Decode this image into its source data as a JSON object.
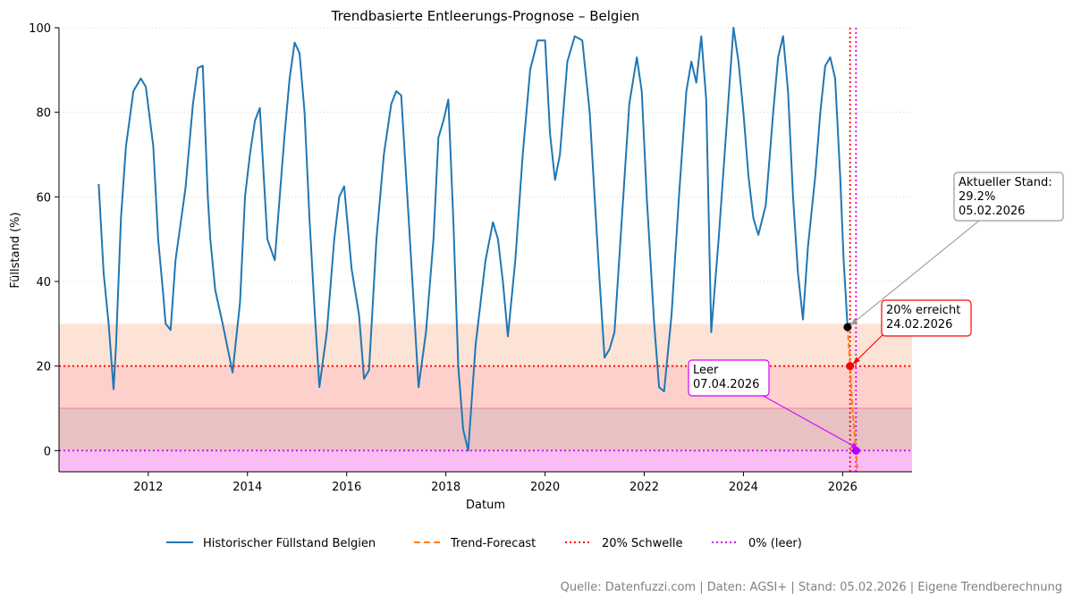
{
  "chart_data": {
    "type": "line",
    "title": "Trendbasierte Entleerungs-Prognose – Belgien",
    "xlabel": "Datum",
    "ylabel": "Füllstand (%)",
    "xlim": [
      2010.2,
      2027.4
    ],
    "ylim": [
      -5,
      100
    ],
    "x_ticks": [
      2012,
      2014,
      2016,
      2018,
      2020,
      2022,
      2024,
      2026
    ],
    "y_ticks": [
      0,
      20,
      40,
      60,
      80,
      100
    ],
    "grid": "horizontal dotted",
    "bands": [
      {
        "from": 20,
        "to": 30,
        "color": "#fde3d6"
      },
      {
        "from": 10,
        "to": 20,
        "color": "#fdd0cc"
      },
      {
        "from": 0,
        "to": 10,
        "color": "#e8c1c3"
      },
      {
        "from": -5,
        "to": 0,
        "color": "#fbbcf5"
      }
    ],
    "historical": {
      "name": "Historischer Füllstand Belgien",
      "color": "#1f77b4",
      "x": [
        2011.0,
        2011.1,
        2011.2,
        2011.3,
        2011.35,
        2011.45,
        2011.55,
        2011.7,
        2011.85,
        2011.95,
        2012.1,
        2012.2,
        2012.3,
        2012.35,
        2012.45,
        2012.55,
        2012.75,
        2012.9,
        2013.0,
        2013.1,
        2013.2,
        2013.25,
        2013.35,
        2013.5,
        2013.7,
        2013.85,
        2013.95,
        2014.05,
        2014.15,
        2014.25,
        2014.4,
        2014.55,
        2014.65,
        2014.75,
        2014.85,
        2014.95,
        2015.05,
        2015.15,
        2015.25,
        2015.35,
        2015.45,
        2015.6,
        2015.75,
        2015.85,
        2015.95,
        2016.1,
        2016.25,
        2016.35,
        2016.45,
        2016.6,
        2016.75,
        2016.9,
        2017.0,
        2017.1,
        2017.25,
        2017.35,
        2017.45,
        2017.6,
        2017.75,
        2017.85,
        2017.95,
        2018.05,
        2018.15,
        2018.25,
        2018.35,
        2018.45,
        2018.6,
        2018.8,
        2018.95,
        2019.05,
        2019.15,
        2019.25,
        2019.4,
        2019.55,
        2019.7,
        2019.85,
        2020.0,
        2020.1,
        2020.2,
        2020.3,
        2020.45,
        2020.6,
        2020.75,
        2020.9,
        2021.0,
        2021.1,
        2021.2,
        2021.3,
        2021.4,
        2021.55,
        2021.7,
        2021.85,
        2021.95,
        2022.05,
        2022.2,
        2022.3,
        2022.4,
        2022.55,
        2022.7,
        2022.85,
        2022.95,
        2023.05,
        2023.15,
        2023.25,
        2023.35,
        2023.5,
        2023.65,
        2023.8,
        2023.9,
        2024.0,
        2024.1,
        2024.2,
        2024.3,
        2024.45,
        2024.6,
        2024.7,
        2024.8,
        2024.9,
        2025.0,
        2025.1,
        2025.2,
        2025.3,
        2025.45,
        2025.55,
        2025.65,
        2025.75,
        2025.85,
        2025.95,
        2026.02,
        2026.1
      ],
      "y": [
        63,
        42,
        30,
        14.5,
        25,
        55,
        72,
        85,
        88,
        86,
        72,
        50,
        37,
        30,
        28.5,
        45,
        62,
        82,
        90.5,
        91,
        60,
        50,
        38,
        30,
        18.5,
        35,
        60,
        70,
        78,
        81,
        50,
        45,
        60,
        75,
        88,
        96.5,
        94,
        80,
        55,
        34,
        15,
        28,
        50,
        60,
        62.5,
        43,
        32,
        17,
        19,
        50,
        70,
        82,
        85,
        84,
        55,
        35,
        15,
        28,
        50,
        74,
        78,
        83,
        55,
        20,
        5,
        0,
        25,
        45,
        54,
        50,
        40,
        27,
        45,
        70,
        90,
        97,
        97,
        75,
        64,
        70,
        92,
        98,
        97,
        80,
        60,
        40,
        22,
        24,
        28,
        55,
        82,
        93,
        85,
        60,
        30,
        15,
        14,
        32,
        60,
        85,
        92,
        87,
        98,
        83,
        28,
        50,
        75,
        100,
        92,
        80,
        65,
        55,
        51,
        58,
        80,
        93,
        98,
        85,
        60,
        42,
        31,
        48,
        65,
        80,
        91,
        93,
        88,
        65,
        45,
        29.2
      ]
    },
    "forecast": {
      "name": "Trend-Forecast",
      "color": "#ff7f0e",
      "x": [
        2026.1,
        2026.15,
        2026.2,
        2026.27,
        2026.3
      ],
      "y": [
        29.2,
        20,
        10,
        0,
        -5
      ]
    },
    "thresholds": [
      {
        "name": "20% Schwelle",
        "y": 20,
        "color": "#ff0000"
      },
      {
        "name": "0% (leer)",
        "y": 0,
        "color": "#d500ff"
      }
    ],
    "vlines": [
      {
        "x": 2026.15,
        "color": "#ff0000"
      },
      {
        "x": 2026.27,
        "color": "#d500ff"
      }
    ],
    "markers": [
      {
        "x": 2026.1,
        "y": 29.2,
        "color": "#000000"
      },
      {
        "x": 2026.15,
        "y": 20,
        "color": "#ff0000"
      },
      {
        "x": 2026.27,
        "y": 0,
        "color": "#b000ff"
      }
    ],
    "annotations": [
      {
        "lines": [
          "Aktueller Stand:",
          "29.2%",
          "05.02.2026"
        ],
        "border": "#999999",
        "arrow": "#999999",
        "target": [
          2026.1,
          29.2
        ]
      },
      {
        "lines": [
          "20% erreicht",
          "24.02.2026"
        ],
        "border": "#ff0000",
        "arrow": "#ff0000",
        "target": [
          2026.15,
          20
        ]
      },
      {
        "lines": [
          "Leer",
          "07.04.2026"
        ],
        "border": "#d500ff",
        "arrow": "#d500ff",
        "target": [
          2026.27,
          0
        ]
      }
    ],
    "legend": {
      "placement": "bottom-center",
      "entries": [
        {
          "label": "Historischer Füllstand Belgien",
          "color": "#1f77b4",
          "style": "solid"
        },
        {
          "label": "Trend-Forecast",
          "color": "#ff7f0e",
          "style": "dashed"
        },
        {
          "label": "20% Schwelle",
          "color": "#ff0000",
          "style": "dotted"
        },
        {
          "label": "0% (leer)",
          "color": "#d500ff",
          "style": "dotted"
        }
      ]
    }
  },
  "source_note": "Quelle: Datenfuzzi.com | Daten: AGSI+ | Stand: 05.02.2026 | Eigene Trendberechnung"
}
